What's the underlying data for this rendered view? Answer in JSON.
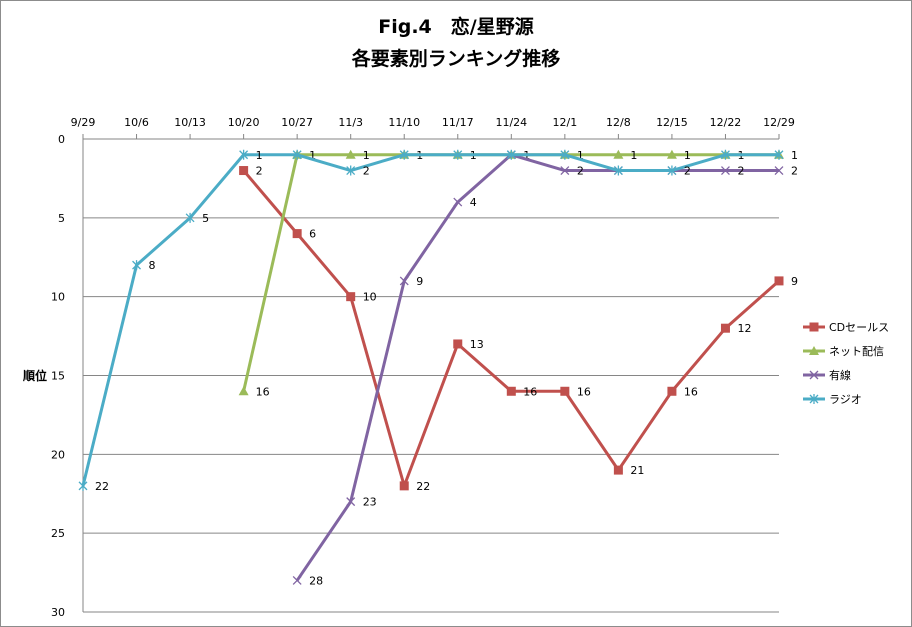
{
  "chart_data": {
    "type": "line",
    "title": "Fig.4　恋/星野源",
    "subtitle": "各要素別ランキング推移",
    "ylabel": "順位",
    "xlabel": "",
    "categories": [
      "9/29",
      "10/6",
      "10/13",
      "10/20",
      "10/27",
      "11/3",
      "11/10",
      "11/17",
      "11/24",
      "12/1",
      "12/8",
      "12/15",
      "12/22",
      "12/29"
    ],
    "ylim": [
      0,
      30
    ],
    "y_reversed": true,
    "yticks": [
      0,
      5,
      10,
      15,
      20,
      25,
      30
    ],
    "x_axis_position": "top",
    "grid": true,
    "legend_position": "right",
    "series": [
      {
        "name": "CDセールス",
        "color": "#c0504d",
        "marker": "square",
        "values": [
          null,
          null,
          null,
          2,
          6,
          10,
          22,
          13,
          16,
          16,
          21,
          16,
          12,
          9
        ],
        "labels": [
          null,
          null,
          null,
          "2",
          "6",
          "10",
          "22",
          "13",
          "16",
          "16",
          "21",
          "16",
          "12",
          "9"
        ]
      },
      {
        "name": "ネット配信",
        "color": "#9bbb59",
        "marker": "triangle",
        "values": [
          null,
          null,
          null,
          16,
          1,
          1,
          1,
          1,
          1,
          1,
          1,
          1,
          1,
          1
        ],
        "labels": [
          null,
          null,
          null,
          "16",
          "1",
          "1",
          "1",
          "1",
          "1",
          "1",
          "1",
          "1",
          "1",
          "1"
        ]
      },
      {
        "name": "有線",
        "color": "#8064a2",
        "marker": "x",
        "values": [
          null,
          null,
          null,
          null,
          28,
          23,
          9,
          4,
          1,
          2,
          2,
          2,
          2,
          2
        ],
        "labels": [
          null,
          null,
          null,
          null,
          "28",
          "23",
          "9",
          "4",
          null,
          "2",
          null,
          null,
          "2",
          "2"
        ]
      },
      {
        "name": "ラジオ",
        "color": "#4bacc6",
        "marker": "star",
        "values": [
          22,
          8,
          5,
          1,
          1,
          2,
          1,
          1,
          1,
          1,
          2,
          2,
          1,
          1
        ],
        "labels": [
          "22",
          "8",
          "5",
          "1",
          null,
          "2",
          null,
          null,
          null,
          null,
          null,
          "2",
          null,
          null
        ]
      }
    ]
  }
}
